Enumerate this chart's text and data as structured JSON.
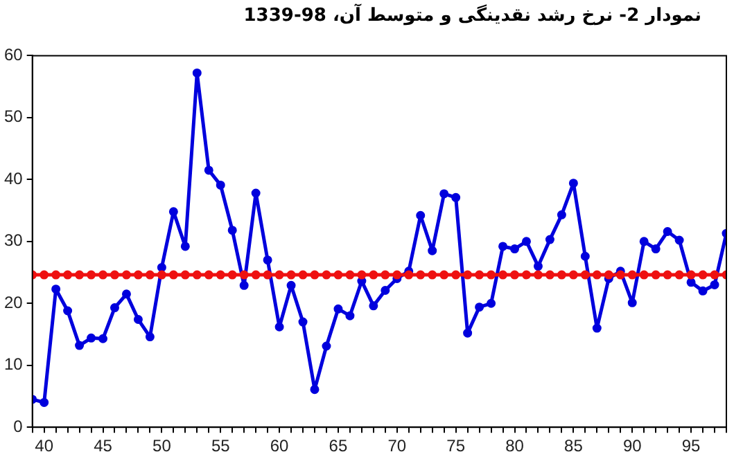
{
  "chart_data": {
    "type": "line",
    "title": "نمودار 2- نرخ رشد نقدینگی و متوسط آن، 98-1339",
    "x": [
      39,
      40,
      41,
      42,
      43,
      44,
      45,
      46,
      47,
      48,
      49,
      50,
      51,
      52,
      53,
      54,
      55,
      56,
      57,
      58,
      59,
      60,
      61,
      62,
      63,
      64,
      65,
      66,
      67,
      68,
      69,
      70,
      71,
      72,
      73,
      74,
      75,
      76,
      77,
      78,
      79,
      80,
      81,
      82,
      83,
      84,
      85,
      86,
      87,
      88,
      89,
      90,
      91,
      92,
      93,
      94,
      95,
      96,
      97,
      98
    ],
    "series": [
      {
        "color": "#0000dd",
        "values": [
          4.5,
          4.0,
          22.3,
          18.8,
          13.2,
          14.4,
          14.3,
          19.3,
          21.5,
          17.4,
          14.6,
          25.8,
          34.8,
          29.2,
          57.2,
          41.5,
          39.1,
          31.8,
          22.9,
          37.8,
          27.0,
          16.2,
          22.9,
          17.0,
          6.1,
          13.1,
          19.1,
          18.0,
          23.6,
          19.6,
          22.1,
          24.0,
          25.2,
          34.2,
          28.5,
          37.7,
          37.1,
          15.2,
          19.4,
          20.0,
          29.2,
          28.8,
          30.0,
          26.0,
          30.3,
          34.3,
          39.4,
          27.6,
          16.0,
          24.0,
          25.2,
          20.1,
          30.0,
          28.8,
          31.6,
          30.2,
          23.4,
          22.0,
          23.0,
          31.3
        ]
      },
      {
        "color": "#ee1111",
        "values": [
          24.6,
          24.6,
          24.6,
          24.6,
          24.6,
          24.6,
          24.6,
          24.6,
          24.6,
          24.6,
          24.6,
          24.6,
          24.6,
          24.6,
          24.6,
          24.6,
          24.6,
          24.6,
          24.6,
          24.6,
          24.6,
          24.6,
          24.6,
          24.6,
          24.6,
          24.6,
          24.6,
          24.6,
          24.6,
          24.6,
          24.6,
          24.6,
          24.6,
          24.6,
          24.6,
          24.6,
          24.6,
          24.6,
          24.6,
          24.6,
          24.6,
          24.6,
          24.6,
          24.6,
          24.6,
          24.6,
          24.6,
          24.6,
          24.6,
          24.6,
          24.6,
          24.6,
          24.6,
          24.6,
          24.6,
          24.6,
          24.6,
          24.6,
          24.6,
          24.6
        ]
      }
    ],
    "xlim": [
      39,
      98
    ],
    "xticks": [
      {
        "value": 39,
        "label": null
      },
      40,
      {
        "value": 41,
        "label": null
      },
      {
        "value": 42,
        "label": null
      },
      {
        "value": 43,
        "label": null
      },
      {
        "value": 44,
        "label": null
      },
      45,
      {
        "value": 46,
        "label": null
      },
      {
        "value": 47,
        "label": null
      },
      {
        "value": 48,
        "label": null
      },
      {
        "value": 49,
        "label": null
      },
      50,
      {
        "value": 51,
        "label": null
      },
      {
        "value": 52,
        "label": null
      },
      {
        "value": 53,
        "label": null
      },
      {
        "value": 54,
        "label": null
      },
      55,
      {
        "value": 56,
        "label": null
      },
      {
        "value": 57,
        "label": null
      },
      {
        "value": 58,
        "label": null
      },
      {
        "value": 59,
        "label": null
      },
      60,
      {
        "value": 61,
        "label": null
      },
      {
        "value": 62,
        "label": null
      },
      {
        "value": 63,
        "label": null
      },
      {
        "value": 64,
        "label": null
      },
      65,
      {
        "value": 66,
        "label": null
      },
      {
        "value": 67,
        "label": null
      },
      {
        "value": 68,
        "label": null
      },
      {
        "value": 69,
        "label": null
      },
      70,
      {
        "value": 71,
        "label": null
      },
      {
        "value": 72,
        "label": null
      },
      {
        "value": 73,
        "label": null
      },
      {
        "value": 74,
        "label": null
      },
      75,
      {
        "value": 76,
        "label": null
      },
      {
        "value": 77,
        "label": null
      },
      {
        "value": 78,
        "label": null
      },
      {
        "value": 79,
        "label": null
      },
      80,
      {
        "value": 81,
        "label": null
      },
      {
        "value": 82,
        "label": null
      },
      {
        "value": 83,
        "label": null
      },
      {
        "value": 84,
        "label": null
      },
      85,
      {
        "value": 86,
        "label": null
      },
      {
        "value": 87,
        "label": null
      },
      {
        "value": 88,
        "label": null
      },
      {
        "value": 89,
        "label": null
      },
      90,
      {
        "value": 91,
        "label": null
      },
      {
        "value": 92,
        "label": null
      },
      {
        "value": 93,
        "label": null
      },
      {
        "value": 94,
        "label": null
      },
      95,
      {
        "value": 96,
        "label": null
      },
      {
        "value": 97,
        "label": null
      },
      {
        "value": 98,
        "label": null
      }
    ],
    "ylim": [
      0,
      60
    ],
    "yticks": [
      0,
      10,
      20,
      30,
      40,
      50,
      60
    ],
    "grid": false,
    "legend": false,
    "marker": "circle",
    "line_style": "solid"
  }
}
